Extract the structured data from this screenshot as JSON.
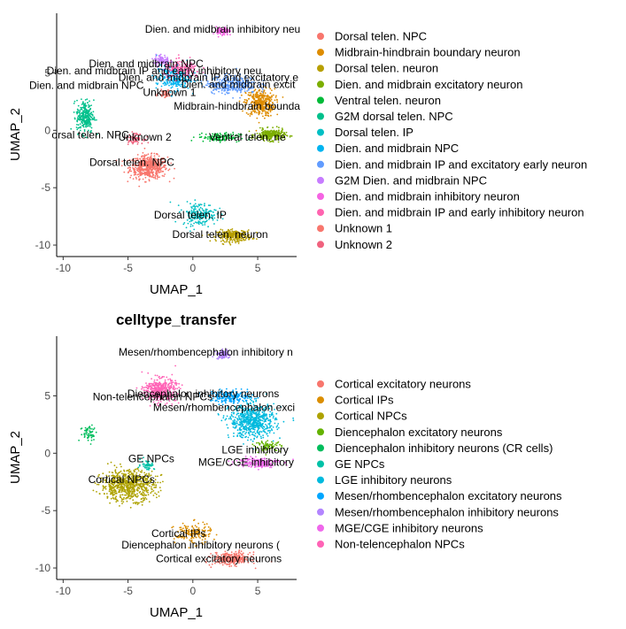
{
  "chart_data": [
    {
      "type": "scatter",
      "title": "",
      "xlabel": "UMAP_1",
      "ylabel": "UMAP_2",
      "xlim": [
        -10.5,
        8
      ],
      "ylim": [
        -11,
        10.2
      ],
      "x_ticks": [
        -10,
        -5,
        0,
        5
      ],
      "y_ticks": [
        -10,
        -5,
        0,
        5
      ],
      "grid": false,
      "legend_position": "right",
      "legend": [
        {
          "label": "Dorsal telen. NPC",
          "color": "#F8766D"
        },
        {
          "label": "Midbrain-hindbrain boundary neuron",
          "color": "#DE8C00"
        },
        {
          "label": "Dorsal telen. neuron",
          "color": "#B79F00"
        },
        {
          "label": "Dien. and midbrain excitatory neuron",
          "color": "#7CAE00"
        },
        {
          "label": "Ventral telen. neuron",
          "color": "#00BA38"
        },
        {
          "label": "G2M dorsal telen. NPC",
          "color": "#00C08B"
        },
        {
          "label": "Dorsal telen. IP",
          "color": "#00BFC4"
        },
        {
          "label": "Dien. and midbrain NPC",
          "color": "#00B4F0"
        },
        {
          "label": "Dien. and midbrain IP and excitatory early neuron",
          "color": "#619CFF"
        },
        {
          "label": "G2M Dien. and midbrain NPC",
          "color": "#C77CFF"
        },
        {
          "label": "Dien. and midbrain inhibitory neuron",
          "color": "#F564E3"
        },
        {
          "label": "Dien. and midbrain IP and early inhibitory neuron",
          "color": "#FF64B0"
        },
        {
          "label": "Unknown 1",
          "color": "#F8766D"
        },
        {
          "label": "Unknown 2",
          "color": "#F0627E"
        }
      ],
      "clusters": [
        {
          "label": "Dorsal telen. NPC",
          "x": -3.4,
          "y": -3.2,
          "sx": 1.3,
          "sy": 0.9,
          "n": 520,
          "color": "#F8766D"
        },
        {
          "label": "Midbrain-hindbrain boundary neuron",
          "x": 5.2,
          "y": 2.4,
          "sx": 1.0,
          "sy": 1.1,
          "n": 360,
          "color": "#DE8C00"
        },
        {
          "label": "Dorsal telen. neuron",
          "x": 3.2,
          "y": -9.2,
          "sx": 1.2,
          "sy": 0.45,
          "n": 280,
          "color": "#B79F00"
        },
        {
          "label": "Dien. and midbrain excitatory neuron",
          "x": 6.0,
          "y": -0.4,
          "sx": 1.0,
          "sy": 0.45,
          "n": 260,
          "color": "#7CAE00"
        },
        {
          "label": "Ventral telen. neuron",
          "x": 2.0,
          "y": -0.6,
          "sx": 1.5,
          "sy": 0.35,
          "n": 120,
          "color": "#00BA38"
        },
        {
          "label": "G2M dorsal telen. NPC",
          "x": -8.3,
          "y": 1.2,
          "sx": 0.6,
          "sy": 1.3,
          "n": 260,
          "color": "#00C08B"
        },
        {
          "label": "Dorsal telen. IP",
          "x": 0.5,
          "y": -7.3,
          "sx": 1.2,
          "sy": 0.9,
          "n": 200,
          "color": "#00BFC4"
        },
        {
          "label": "Dien. and midbrain NPC",
          "x": -1.5,
          "y": 4.6,
          "sx": 1.2,
          "sy": 1.0,
          "n": 280,
          "color": "#00B4F0"
        },
        {
          "label": "Dien. and midbrain IP and excitatory early neuron",
          "x": 3.0,
          "y": 4.0,
          "sx": 1.8,
          "sy": 0.7,
          "n": 320,
          "color": "#619CFF"
        },
        {
          "label": "G2M Dien. and midbrain NPC",
          "x": -2.4,
          "y": 6.1,
          "sx": 0.55,
          "sy": 0.45,
          "n": 90,
          "color": "#C77CFF"
        },
        {
          "label": "Dien. and midbrain inhibitory neuron",
          "x": 2.3,
          "y": 8.6,
          "sx": 0.45,
          "sy": 0.35,
          "n": 90,
          "color": "#F564E3"
        },
        {
          "label": "Dien. and midbrain IP and early inhibitory neuron",
          "x": -0.8,
          "y": 5.3,
          "sx": 1.3,
          "sy": 0.7,
          "n": 170,
          "color": "#FF64B0"
        },
        {
          "label": "Unknown 1",
          "x": -2.2,
          "y": 3.2,
          "sx": 0.4,
          "sy": 0.3,
          "n": 40,
          "color": "#F8766D"
        },
        {
          "label": "Unknown 2",
          "x": -4.5,
          "y": -0.7,
          "sx": 0.6,
          "sy": 0.4,
          "n": 70,
          "color": "#F0627E"
        }
      ],
      "cluster_labels": [
        {
          "text": "Dien. and midbrain inhibitory neu",
          "x": 2.3,
          "y": 8.5
        },
        {
          "text": "Dien. and midbrain NPC",
          "x": -3.6,
          "y": 5.5
        },
        {
          "text": "Dien. and midbrain IP and early inhibitory neu",
          "x": -3.0,
          "y": 4.9
        },
        {
          "text": "Dien. and midbrain IP and excitatory e",
          "x": 1.2,
          "y": 4.3
        },
        {
          "text": "Dien. and midbrain NPC",
          "x": -8.2,
          "y": 3.6
        },
        {
          "text": "Dien. and midbrain excit",
          "x": 3.5,
          "y": 3.7
        },
        {
          "text": "Unknown 1",
          "x": -1.8,
          "y": 3.0
        },
        {
          "text": "Midbrain-hindbrain bounda",
          "x": 3.4,
          "y": 1.8
        },
        {
          "text": "orsal telen. NPC",
          "x": -7.9,
          "y": -0.7
        },
        {
          "text": "Unknown 2",
          "x": -3.7,
          "y": -0.9
        },
        {
          "text": "Ventral telen. ne",
          "x": 4.2,
          "y": -0.9
        },
        {
          "text": "Dorsal telen. NPC",
          "x": -4.7,
          "y": -3.1
        },
        {
          "text": "Dorsal telen. IP",
          "x": -0.2,
          "y": -7.7
        },
        {
          "text": "Dorsal telen. neuron",
          "x": 2.1,
          "y": -9.4
        }
      ]
    },
    {
      "type": "scatter",
      "title": "celltype_transfer",
      "xlabel": "UMAP_1",
      "ylabel": "UMAP_2",
      "xlim": [
        -10.5,
        8
      ],
      "ylim": [
        -11,
        10.2
      ],
      "x_ticks": [
        -10,
        -5,
        0,
        5
      ],
      "y_ticks": [
        -10,
        -5,
        0,
        5
      ],
      "grid": false,
      "legend_position": "right",
      "legend": [
        {
          "label": "Cortical excitatory neurons",
          "color": "#F8766D"
        },
        {
          "label": "Cortical IPs",
          "color": "#DB8E00"
        },
        {
          "label": "Cortical NPCs",
          "color": "#AEA200"
        },
        {
          "label": "Diencephalon excitatory neurons",
          "color": "#64B200"
        },
        {
          "label": "Diencephalon inhibitory neurons (CR cells)",
          "color": "#00BD5C"
        },
        {
          "label": "GE NPCs",
          "color": "#00C1A7"
        },
        {
          "label": "LGE inhibitory neurons",
          "color": "#00BADE"
        },
        {
          "label": "Mesen/rhombencephalon excitatory neurons",
          "color": "#00A6FF"
        },
        {
          "label": "Mesen/rhombencephalon inhibitory neurons",
          "color": "#B385FF"
        },
        {
          "label": "MGE/CGE inhibitory neurons",
          "color": "#EF67EB"
        },
        {
          "label": "Non-telencephalon NPCs",
          "color": "#FF63B6"
        }
      ],
      "clusters": [
        {
          "label": "Cortical excitatory neurons",
          "x": 3.0,
          "y": -9.2,
          "sx": 1.3,
          "sy": 0.5,
          "n": 300,
          "color": "#F8766D"
        },
        {
          "label": "Cortical IPs",
          "x": 0.0,
          "y": -7.0,
          "sx": 1.3,
          "sy": 0.8,
          "n": 160,
          "color": "#DB8E00"
        },
        {
          "label": "Cortical NPCs",
          "x": -5.0,
          "y": -2.8,
          "sx": 1.9,
          "sy": 1.2,
          "n": 700,
          "color": "#AEA200"
        },
        {
          "label": "Diencephalon excitatory neurons",
          "x": 5.8,
          "y": 0.6,
          "sx": 0.9,
          "sy": 0.4,
          "n": 80,
          "color": "#64B200"
        },
        {
          "label": "Diencephalon inhibitory neurons (CR cells)",
          "x": -8.0,
          "y": 1.8,
          "sx": 0.6,
          "sy": 0.7,
          "n": 60,
          "color": "#00BD5C"
        },
        {
          "label": "GE NPCs",
          "x": -3.5,
          "y": -1.0,
          "sx": 0.5,
          "sy": 0.4,
          "n": 50,
          "color": "#00C1A7"
        },
        {
          "label": "LGE inhibitory neurons",
          "x": 4.6,
          "y": 2.8,
          "sx": 1.6,
          "sy": 1.3,
          "n": 650,
          "color": "#00BADE"
        },
        {
          "label": "Mesen/rhombencephalon excitatory neurons",
          "x": 3.0,
          "y": 4.9,
          "sx": 1.5,
          "sy": 0.5,
          "n": 200,
          "color": "#00A6FF"
        },
        {
          "label": "Mesen/rhombencephalon inhibitory neurons",
          "x": 2.3,
          "y": 8.6,
          "sx": 0.45,
          "sy": 0.35,
          "n": 90,
          "color": "#B385FF"
        },
        {
          "label": "MGE/CGE inhibitory neurons",
          "x": 5.0,
          "y": -0.8,
          "sx": 1.5,
          "sy": 0.4,
          "n": 200,
          "color": "#EF67EB"
        },
        {
          "label": "Non-telencephalon NPCs",
          "x": -2.5,
          "y": 5.5,
          "sx": 1.1,
          "sy": 0.9,
          "n": 420,
          "color": "#FF63B6"
        }
      ],
      "cluster_labels": [
        {
          "text": "Mesen/rhombencephalon inhibitory n",
          "x": 1.0,
          "y": 8.5
        },
        {
          "text": "Diencephalon inhibitory neurons",
          "x": 0.8,
          "y": 4.9
        },
        {
          "text": "Non-telencephalon NPCs",
          "x": -3.1,
          "y": 4.6
        },
        {
          "text": "Mesen/rhombencephalon exci",
          "x": 2.4,
          "y": 3.7
        },
        {
          "text": "LGE inhibitory",
          "x": 4.8,
          "y": 0.0
        },
        {
          "text": "GE NPCs",
          "x": -3.2,
          "y": -0.8
        },
        {
          "text": "MGE/CGE inhibitory",
          "x": 4.1,
          "y": -1.1
        },
        {
          "text": "Cortical NPCs",
          "x": -5.5,
          "y": -2.6
        },
        {
          "text": "Cortical IPs",
          "x": -1.1,
          "y": -7.3
        },
        {
          "text": "Diencephalon inhibitory neurons (",
          "x": 0.6,
          "y": -8.3
        },
        {
          "text": "Cortical excitatory neurons",
          "x": 2.0,
          "y": -9.5
        }
      ]
    }
  ]
}
